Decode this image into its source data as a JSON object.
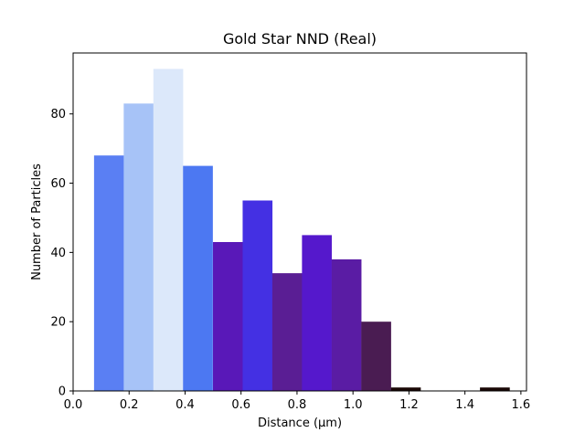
{
  "chart_data": {
    "type": "bar",
    "title": "Gold Star NND (Real)",
    "xlabel": "Distance (µm)",
    "ylabel": "Number of Particles",
    "xlim": [
      0.0,
      1.62
    ],
    "ylim": [
      0,
      97.6
    ],
    "grid": false,
    "legend": "none",
    "bin_width": 0.1065,
    "bins": [
      {
        "x": 0.128,
        "value": 68,
        "color": "#5a7ff3"
      },
      {
        "x": 0.234,
        "value": 83,
        "color": "#a7c3f7"
      },
      {
        "x": 0.34,
        "value": 93,
        "color": "#dce8fa"
      },
      {
        "x": 0.446,
        "value": 65,
        "color": "#4c78f2"
      },
      {
        "x": 0.553,
        "value": 43,
        "color": "#5918b8"
      },
      {
        "x": 0.659,
        "value": 55,
        "color": "#4430e3"
      },
      {
        "x": 0.765,
        "value": 34,
        "color": "#5a1e94"
      },
      {
        "x": 0.871,
        "value": 45,
        "color": "#5518cc"
      },
      {
        "x": 0.977,
        "value": 38,
        "color": "#5a1ca4"
      },
      {
        "x": 1.083,
        "value": 20,
        "color": "#4a1c52"
      },
      {
        "x": 1.189,
        "value": 1,
        "color": "#1a0806"
      },
      {
        "x": 1.295,
        "value": 0,
        "color": "#1a0806"
      },
      {
        "x": 1.401,
        "value": 0,
        "color": "#1a0806"
      },
      {
        "x": 1.507,
        "value": 1,
        "color": "#1a0806"
      }
    ],
    "x_ticks": [
      {
        "value": 0.0,
        "label": "0.0"
      },
      {
        "value": 0.2,
        "label": "0.2"
      },
      {
        "value": 0.4,
        "label": "0.4"
      },
      {
        "value": 0.6,
        "label": "0.6"
      },
      {
        "value": 0.8,
        "label": "0.8"
      },
      {
        "value": 1.0,
        "label": "1.0"
      },
      {
        "value": 1.2,
        "label": "1.2"
      },
      {
        "value": 1.4,
        "label": "1.4"
      },
      {
        "value": 1.6,
        "label": "1.6"
      }
    ],
    "y_ticks": [
      {
        "value": 0,
        "label": "0"
      },
      {
        "value": 20,
        "label": "20"
      },
      {
        "value": 40,
        "label": "40"
      },
      {
        "value": 60,
        "label": "60"
      },
      {
        "value": 80,
        "label": "80"
      }
    ]
  }
}
